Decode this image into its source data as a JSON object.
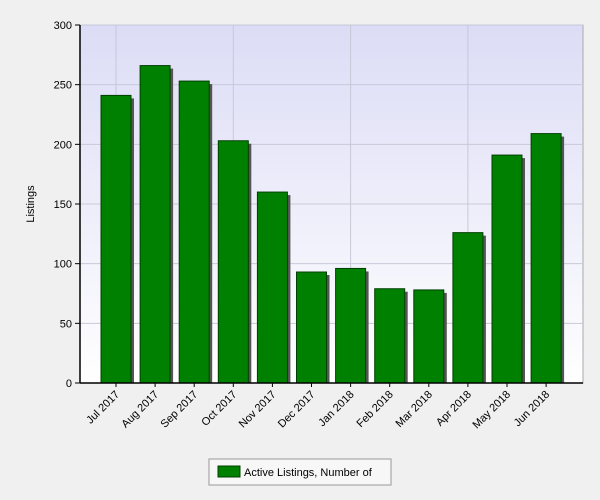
{
  "chart_data": {
    "type": "bar",
    "y_label": "Listings",
    "categories": [
      "Jul 2017",
      "Aug 2017",
      "Sep 2017",
      "Oct 2017",
      "Nov 2017",
      "Dec 2017",
      "Jan 2018",
      "Feb 2018",
      "Mar 2018",
      "Apr 2018",
      "May 2018",
      "Jun 2018"
    ],
    "series": [
      {
        "name": "Active Listings, Number of",
        "color": "#008000",
        "values": [
          241,
          266,
          253,
          203,
          160,
          93,
          96,
          79,
          78,
          126,
          191,
          209
        ]
      }
    ],
    "ylim": [
      0,
      300
    ],
    "yticks": [
      0,
      50,
      100,
      150,
      200,
      250,
      300
    ],
    "grid": true,
    "legend": "bottom"
  }
}
